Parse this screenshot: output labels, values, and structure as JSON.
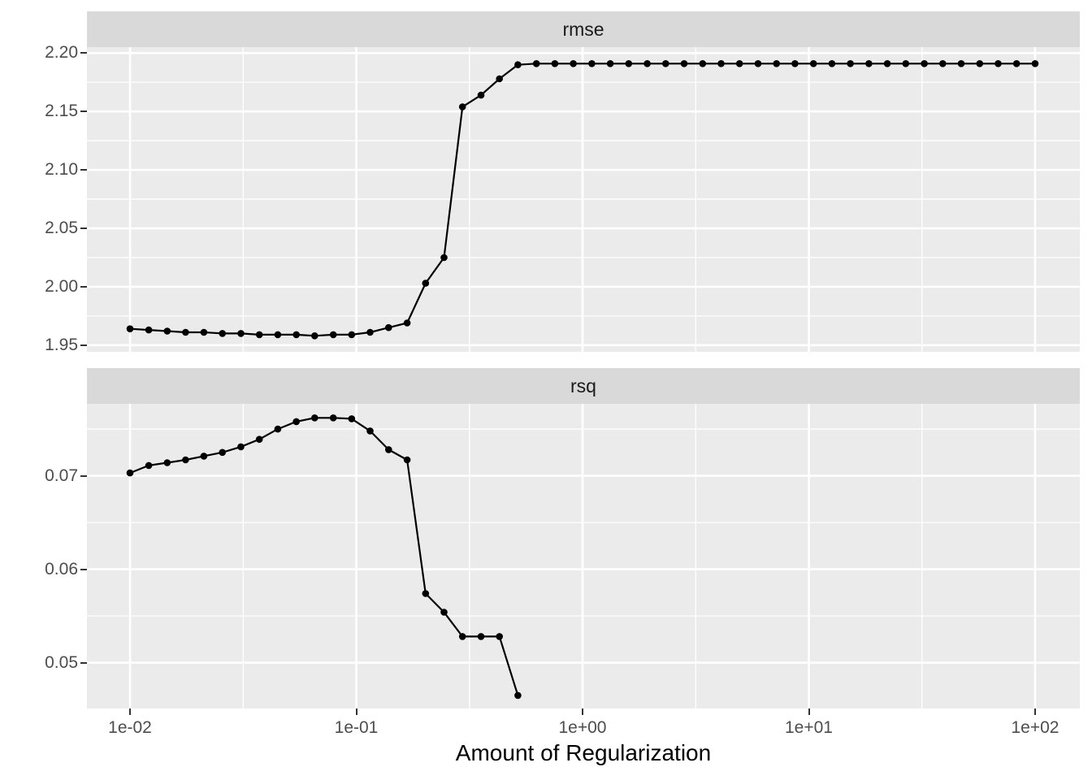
{
  "figure": {
    "xlabel": "Amount of Regularization",
    "xtick_labels": [
      "1e-02",
      "1e-01",
      "1e+00",
      "1e+01",
      "1e+02"
    ]
  },
  "chart_data": {
    "type": "line",
    "title": "",
    "xlabel": "Amount of Regularization",
    "ylabel": "",
    "xscale": "log10",
    "xlim": [
      0.00645,
      157.6
    ],
    "xticks": [
      0.01,
      0.1,
      1,
      10,
      100
    ],
    "xtick_labels": [
      "1e-02",
      "1e-01",
      "1e+00",
      "1e+01",
      "1e+02"
    ],
    "grid": true,
    "marker": "point",
    "line_color": "#000000",
    "x": [
      0.01,
      0.0121,
      0.0146,
      0.0176,
      0.0212,
      0.0256,
      0.0309,
      0.0373,
      0.045,
      0.0543,
      0.0655,
      0.0791,
      0.0954,
      0.1151,
      0.1389,
      0.1677,
      0.2024,
      0.2442,
      0.2947,
      0.3556,
      0.4292,
      0.5179,
      0.6251,
      0.7543,
      0.9103,
      1.0985,
      1.3257,
      1.5999,
      1.9307,
      2.33,
      2.8118,
      3.3932,
      4.0949,
      4.9417,
      5.9636,
      7.1969,
      8.6851,
      10.4811,
      12.6486,
      15.2642,
      18.4207,
      22.2299,
      26.827,
      32.3746,
      39.0694,
      47.1487,
      56.8987,
      68.6649,
      82.8643,
      100
    ],
    "facets": [
      {
        "label": "rmse",
        "ylim": [
          1.9443,
          2.2051
        ],
        "ytick_values": [
          2.2,
          2.15,
          2.1,
          2.05,
          2.0,
          1.95
        ],
        "ytick_labels": [
          "2.20",
          "2.15",
          "2.10",
          "2.05",
          "2.00",
          "1.95"
        ],
        "values": [
          1.964,
          1.963,
          1.962,
          1.961,
          1.961,
          1.96,
          1.96,
          1.959,
          1.959,
          1.959,
          1.958,
          1.959,
          1.959,
          1.961,
          1.965,
          1.969,
          2.003,
          2.025,
          2.154,
          2.164,
          2.178,
          2.19,
          2.191,
          2.191,
          2.191,
          2.191,
          2.191,
          2.191,
          2.191,
          2.191,
          2.191,
          2.191,
          2.191,
          2.191,
          2.191,
          2.191,
          2.191,
          2.191,
          2.191,
          2.191,
          2.191,
          2.191,
          2.191,
          2.191,
          2.191,
          2.191,
          2.191,
          2.191,
          2.191,
          2.191
        ]
      },
      {
        "label": "rsq",
        "ylim": [
          0.0451,
          0.0777
        ],
        "ytick_values": [
          0.07,
          0.06,
          0.05
        ],
        "ytick_labels": [
          "0.07",
          "0.06",
          "0.05"
        ],
        "values": [
          0.0703,
          0.0711,
          0.0714,
          0.0717,
          0.0721,
          0.0725,
          0.0731,
          0.0739,
          0.075,
          0.0758,
          0.0762,
          0.0762,
          0.0761,
          0.0748,
          0.0728,
          0.0717,
          0.0574,
          0.0554,
          0.0528,
          0.0528,
          0.0528,
          0.0465,
          null,
          null,
          null,
          null,
          null,
          null,
          null,
          null,
          null,
          null,
          null,
          null,
          null,
          null,
          null,
          null,
          null,
          null,
          null,
          null,
          null,
          null,
          null,
          null,
          null,
          null,
          null,
          null
        ]
      }
    ]
  }
}
